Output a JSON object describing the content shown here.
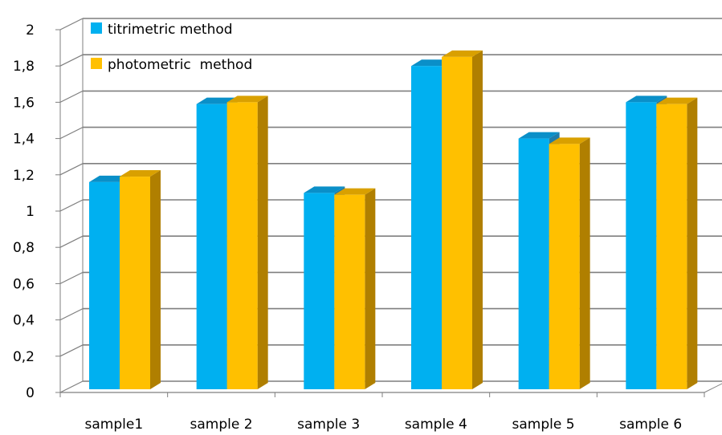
{
  "chart_data": {
    "type": "bar",
    "categories": [
      "sample1",
      "sample 2",
      "sample 3",
      "sample 4",
      "sample 5",
      "sample 6"
    ],
    "series": [
      {
        "name": "titrimetric method",
        "values": [
          1.16,
          1.59,
          1.1,
          1.8,
          1.4,
          1.6
        ],
        "color": "#00B0F0",
        "color_top": "#0A8FC8",
        "color_side": "#1F7CAA"
      },
      {
        "name": "photometric  method",
        "values": [
          1.19,
          1.6,
          1.09,
          1.85,
          1.37,
          1.59
        ],
        "color": "#FFC000",
        "color_top": "#D9A000",
        "color_side": "#B07F00"
      }
    ],
    "y_ticks": [
      "0",
      "0,2",
      "0,4",
      "0,6",
      "0,8",
      "1",
      "1,2",
      "1,4",
      "1,6",
      "1,8",
      "2"
    ],
    "ylim": [
      0,
      2
    ],
    "grid": true,
    "legend": "top-left",
    "gridline_color": "#7f7f7f"
  }
}
